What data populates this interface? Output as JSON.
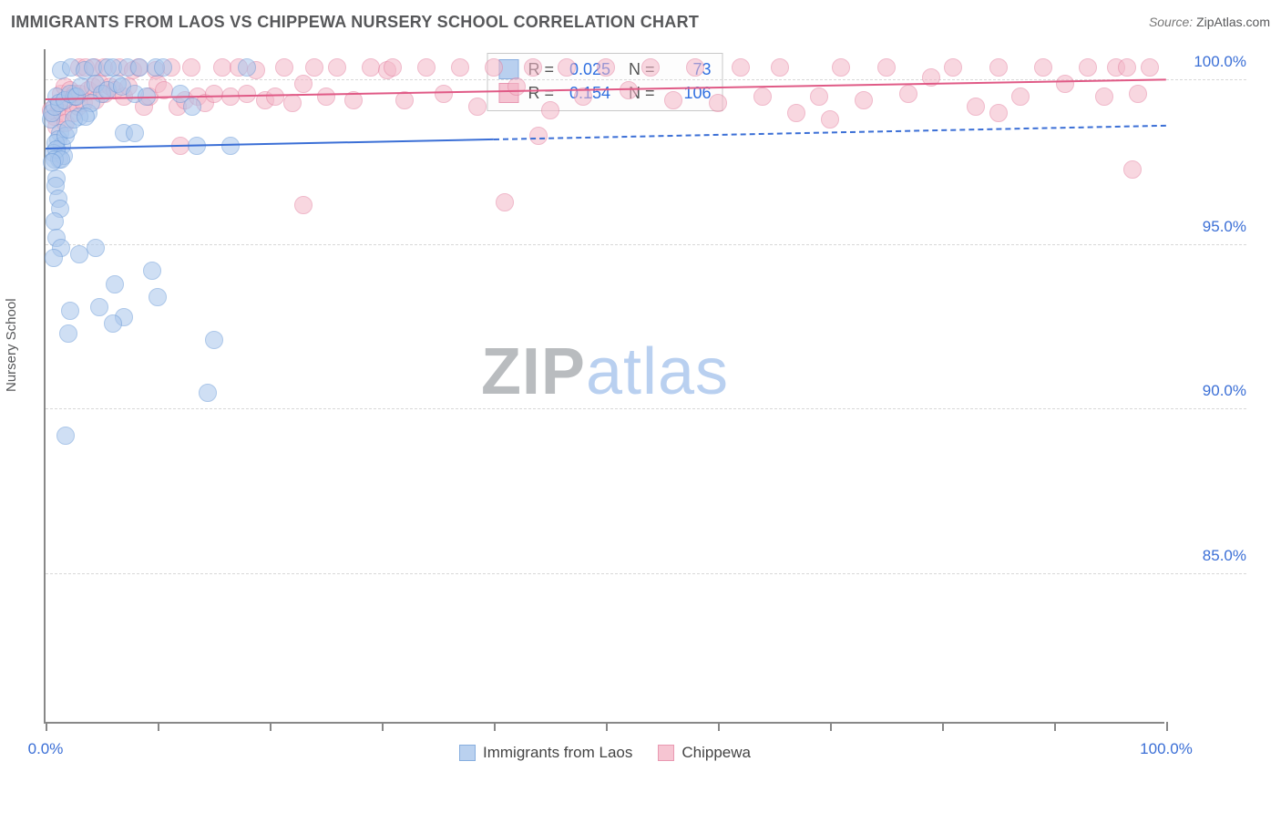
{
  "title": "IMMIGRANTS FROM LAOS VS CHIPPEWA NURSERY SCHOOL CORRELATION CHART",
  "source_label": "Source:",
  "source_value": "ZipAtlas.com",
  "y_axis_label": "Nursery School",
  "watermark": {
    "part1": "ZIP",
    "part2": "atlas"
  },
  "chart": {
    "type": "scatter",
    "background_color": "#ffffff",
    "grid_color": "#d8d8d8",
    "axis_color": "#888888",
    "x_label_color": "#3b6fd6",
    "y_label_color": "#3b6fd6",
    "xlim": [
      0,
      100
    ],
    "ylim": [
      80.5,
      101.0
    ],
    "x_ticks": [
      0,
      10,
      20,
      30,
      40,
      50,
      60,
      70,
      80,
      90,
      100
    ],
    "x_tick_labels": {
      "0": "0.0%",
      "100": "100.0%"
    },
    "y_ticks": [
      85,
      90,
      95,
      100
    ],
    "y_tick_labels": {
      "85": "85.0%",
      "90": "90.0%",
      "95": "95.0%",
      "100": "100.0%"
    },
    "marker_radius": 10,
    "marker_border_width": 1.5,
    "series": [
      {
        "name": "Immigrants from Laos",
        "fill": "#a9c6ec",
        "fill_opacity": 0.55,
        "stroke": "#6a9ad8",
        "R": "0.025",
        "N": "73",
        "trend": {
          "y_at_x0": 97.9,
          "y_at_x100": 98.6,
          "solid_until_x": 40,
          "color": "#3b6fd6",
          "width": 2
        },
        "points": [
          [
            0.5,
            98.8
          ],
          [
            0.6,
            99.0
          ],
          [
            0.8,
            99.2
          ],
          [
            1.0,
            99.5
          ],
          [
            1.2,
            99.3
          ],
          [
            1.4,
            100.3
          ],
          [
            1.7,
            99.4
          ],
          [
            1.3,
            98.4
          ],
          [
            1.1,
            98.2
          ],
          [
            1.5,
            98.0
          ],
          [
            0.9,
            98.1
          ],
          [
            0.7,
            97.8
          ],
          [
            1.2,
            97.6
          ],
          [
            1.6,
            97.7
          ],
          [
            1.0,
            97.9
          ],
          [
            1.8,
            98.3
          ],
          [
            2.0,
            98.5
          ],
          [
            2.3,
            100.4
          ],
          [
            2.6,
            99.5
          ],
          [
            0.8,
            97.6
          ],
          [
            1.4,
            97.6
          ],
          [
            0.6,
            97.5
          ],
          [
            1.0,
            97.0
          ],
          [
            0.9,
            96.8
          ],
          [
            1.1,
            96.4
          ],
          [
            1.3,
            96.1
          ],
          [
            0.8,
            95.7
          ],
          [
            1.0,
            95.2
          ],
          [
            1.4,
            94.9
          ],
          [
            0.7,
            94.6
          ],
          [
            2.2,
            99.6
          ],
          [
            2.8,
            99.5
          ],
          [
            3.2,
            99.8
          ],
          [
            3.5,
            100.3
          ],
          [
            3.8,
            99.0
          ],
          [
            4.2,
            100.4
          ],
          [
            4.5,
            99.9
          ],
          [
            5.0,
            99.6
          ],
          [
            5.5,
            99.7
          ],
          [
            5.5,
            100.4
          ],
          [
            4.1,
            99.3
          ],
          [
            3.0,
            98.9
          ],
          [
            2.5,
            98.8
          ],
          [
            3.6,
            98.9
          ],
          [
            6.0,
            100.4
          ],
          [
            6.4,
            99.9
          ],
          [
            6.8,
            99.8
          ],
          [
            7.3,
            100.4
          ],
          [
            8.0,
            99.6
          ],
          [
            8.4,
            100.4
          ],
          [
            9.0,
            99.5
          ],
          [
            7.0,
            98.4
          ],
          [
            8.0,
            98.4
          ],
          [
            9.8,
            100.4
          ],
          [
            10.5,
            100.4
          ],
          [
            12.0,
            99.6
          ],
          [
            13.1,
            99.2
          ],
          [
            13.5,
            98.0
          ],
          [
            16.5,
            98.0
          ],
          [
            18.0,
            100.4
          ],
          [
            3.0,
            94.7
          ],
          [
            4.5,
            94.9
          ],
          [
            6.2,
            93.8
          ],
          [
            9.5,
            94.2
          ],
          [
            10.0,
            93.4
          ],
          [
            7.0,
            92.8
          ],
          [
            6.0,
            92.6
          ],
          [
            2.0,
            92.3
          ],
          [
            15.0,
            92.1
          ],
          [
            14.5,
            90.5
          ],
          [
            1.8,
            89.2
          ],
          [
            2.2,
            93.0
          ],
          [
            4.8,
            93.1
          ]
        ]
      },
      {
        "name": "Chippewa",
        "fill": "#f4b7c8",
        "fill_opacity": 0.55,
        "stroke": "#e480a0",
        "R": "0.154",
        "N": "106",
        "trend": {
          "y_at_x0": 99.4,
          "y_at_x100": 100.0,
          "solid_until_x": 100,
          "color": "#e05a86",
          "width": 2
        },
        "points": [
          [
            0.5,
            99.1
          ],
          [
            0.8,
            98.9
          ],
          [
            1.2,
            99.2
          ],
          [
            1.0,
            98.6
          ],
          [
            1.5,
            99.0
          ],
          [
            1.8,
            98.7
          ],
          [
            2.1,
            99.3
          ],
          [
            2.5,
            99.0
          ],
          [
            2.9,
            99.2
          ],
          [
            1.4,
            99.6
          ],
          [
            1.7,
            99.8
          ],
          [
            2.2,
            99.7
          ],
          [
            2.6,
            99.6
          ],
          [
            3.1,
            99.6
          ],
          [
            3.4,
            99.3
          ],
          [
            3.8,
            99.7
          ],
          [
            4.2,
            99.8
          ],
          [
            4.5,
            99.4
          ],
          [
            4.9,
            99.9
          ],
          [
            5.3,
            99.6
          ],
          [
            3.0,
            100.4
          ],
          [
            3.6,
            100.4
          ],
          [
            4.4,
            100.4
          ],
          [
            5.2,
            100.4
          ],
          [
            5.8,
            99.8
          ],
          [
            6.2,
            99.7
          ],
          [
            6.6,
            100.4
          ],
          [
            7.0,
            99.5
          ],
          [
            7.4,
            99.8
          ],
          [
            7.8,
            100.3
          ],
          [
            8.3,
            100.4
          ],
          [
            8.8,
            99.2
          ],
          [
            9.3,
            99.5
          ],
          [
            9.8,
            100.3
          ],
          [
            10.0,
            99.9
          ],
          [
            10.6,
            99.7
          ],
          [
            11.2,
            100.4
          ],
          [
            11.8,
            99.2
          ],
          [
            12.4,
            99.4
          ],
          [
            13.0,
            100.4
          ],
          [
            13.6,
            99.5
          ],
          [
            14.2,
            99.3
          ],
          [
            15.0,
            99.6
          ],
          [
            15.8,
            100.4
          ],
          [
            16.5,
            99.5
          ],
          [
            17.2,
            100.4
          ],
          [
            18.0,
            99.6
          ],
          [
            18.8,
            100.3
          ],
          [
            19.6,
            99.4
          ],
          [
            20.5,
            99.5
          ],
          [
            21.3,
            100.4
          ],
          [
            22.0,
            99.3
          ],
          [
            23.0,
            99.9
          ],
          [
            24.0,
            100.4
          ],
          [
            25.0,
            99.5
          ],
          [
            26.0,
            100.4
          ],
          [
            27.5,
            99.4
          ],
          [
            29.0,
            100.4
          ],
          [
            30.5,
            100.3
          ],
          [
            31.0,
            100.4
          ],
          [
            32.0,
            99.4
          ],
          [
            34.0,
            100.4
          ],
          [
            35.5,
            99.6
          ],
          [
            37.0,
            100.4
          ],
          [
            38.5,
            99.2
          ],
          [
            40.0,
            100.4
          ],
          [
            42.0,
            99.8
          ],
          [
            44.0,
            98.3
          ],
          [
            43.5,
            100.4
          ],
          [
            45.0,
            99.1
          ],
          [
            46.5,
            100.4
          ],
          [
            48.0,
            99.5
          ],
          [
            50.0,
            100.4
          ],
          [
            52.0,
            99.7
          ],
          [
            54.0,
            100.4
          ],
          [
            56.0,
            99.4
          ],
          [
            58.0,
            100.4
          ],
          [
            60.0,
            99.3
          ],
          [
            62.0,
            100.4
          ],
          [
            64.0,
            99.5
          ],
          [
            65.5,
            100.4
          ],
          [
            67.0,
            99.0
          ],
          [
            69.0,
            99.5
          ],
          [
            71.0,
            100.4
          ],
          [
            73.0,
            99.4
          ],
          [
            75.0,
            100.4
          ],
          [
            77.0,
            99.6
          ],
          [
            79.0,
            100.1
          ],
          [
            81.0,
            100.4
          ],
          [
            83.0,
            99.2
          ],
          [
            85.0,
            100.4
          ],
          [
            87.0,
            99.5
          ],
          [
            89.0,
            100.4
          ],
          [
            91.0,
            99.9
          ],
          [
            93.0,
            100.4
          ],
          [
            94.5,
            99.5
          ],
          [
            95.5,
            100.4
          ],
          [
            96.5,
            100.4
          ],
          [
            97.5,
            99.6
          ],
          [
            98.5,
            100.4
          ],
          [
            41.0,
            96.3
          ],
          [
            23.0,
            96.2
          ],
          [
            12.0,
            98.0
          ],
          [
            97.0,
            97.3
          ],
          [
            85.0,
            99.0
          ],
          [
            70.0,
            98.8
          ]
        ]
      }
    ]
  },
  "legend_top_labels": {
    "R": "R =",
    "N": "N ="
  },
  "legend_bottom": [
    {
      "label": "Immigrants from Laos",
      "series": 0
    },
    {
      "label": "Chippewa",
      "series": 1
    }
  ]
}
